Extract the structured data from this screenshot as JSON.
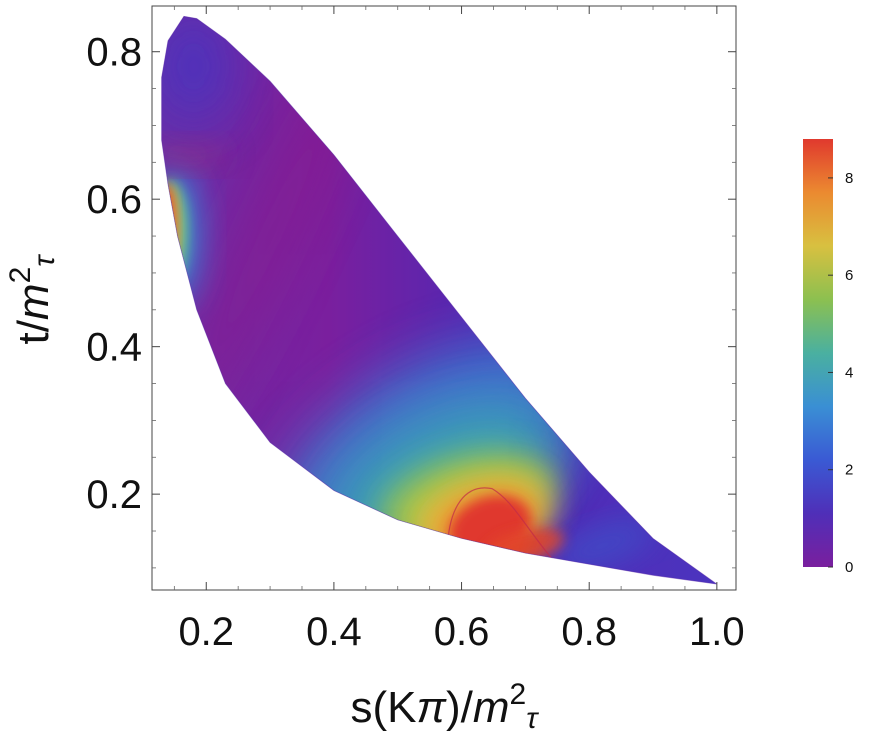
{
  "chart_data": {
    "type": "heatmap",
    "title": "",
    "xlabel": {
      "prefix": "s(K",
      "greek": "π",
      "mid": ")/",
      "m": "m",
      "sup": "2",
      "sub": "τ"
    },
    "ylabel": {
      "prefix": "t/",
      "m": "m",
      "sup": "2",
      "sub": "τ"
    },
    "xlim": [
      0.115,
      1.03
    ],
    "ylim": [
      0.07,
      0.862
    ],
    "x_ticks": [
      {
        "value": 0.2,
        "label": "0.2"
      },
      {
        "value": 0.4,
        "label": "0.4"
      },
      {
        "value": 0.6,
        "label": "0.6"
      },
      {
        "value": 0.8,
        "label": "0.8"
      },
      {
        "value": 1.0,
        "label": "1.0"
      }
    ],
    "y_ticks": [
      {
        "value": 0.2,
        "label": "0.2"
      },
      {
        "value": 0.4,
        "label": "0.4"
      },
      {
        "value": 0.6,
        "label": "0.6"
      },
      {
        "value": 0.8,
        "label": "0.8"
      }
    ],
    "colorbar": {
      "range": [
        0,
        8.8
      ],
      "ticks": [
        {
          "value": 0,
          "label": "0"
        },
        {
          "value": 2,
          "label": "2"
        },
        {
          "value": 4,
          "label": "4"
        },
        {
          "value": 6,
          "label": "6"
        },
        {
          "value": 8,
          "label": "8"
        }
      ],
      "stops": [
        "#7a1f9e",
        "#4f2fb8",
        "#3a5ad4",
        "#3a8fd4",
        "#4ab0a0",
        "#8cc050",
        "#d8c040",
        "#eb8a30",
        "#e0392e"
      ]
    },
    "region_boundary": {
      "upper": [
        [
          0.13,
          0.765
        ],
        [
          0.14,
          0.815
        ],
        [
          0.165,
          0.848
        ],
        [
          0.185,
          0.845
        ],
        [
          0.23,
          0.817
        ],
        [
          0.3,
          0.76
        ],
        [
          0.4,
          0.66
        ],
        [
          0.5,
          0.55
        ],
        [
          0.6,
          0.44
        ],
        [
          0.7,
          0.33
        ],
        [
          0.8,
          0.23
        ],
        [
          0.9,
          0.14
        ],
        [
          1.0,
          0.078
        ]
      ],
      "lower": [
        [
          1.0,
          0.078
        ],
        [
          0.9,
          0.09
        ],
        [
          0.8,
          0.105
        ],
        [
          0.7,
          0.12
        ],
        [
          0.6,
          0.14
        ],
        [
          0.5,
          0.165
        ],
        [
          0.4,
          0.205
        ],
        [
          0.3,
          0.27
        ],
        [
          0.23,
          0.35
        ],
        [
          0.185,
          0.45
        ],
        [
          0.155,
          0.55
        ],
        [
          0.14,
          0.62
        ],
        [
          0.13,
          0.68
        ]
      ]
    },
    "notable_peaks": [
      {
        "s": 0.64,
        "t": 0.16,
        "value": 8.8
      },
      {
        "s": 0.145,
        "t": 0.56,
        "value": 8.8
      }
    ]
  }
}
